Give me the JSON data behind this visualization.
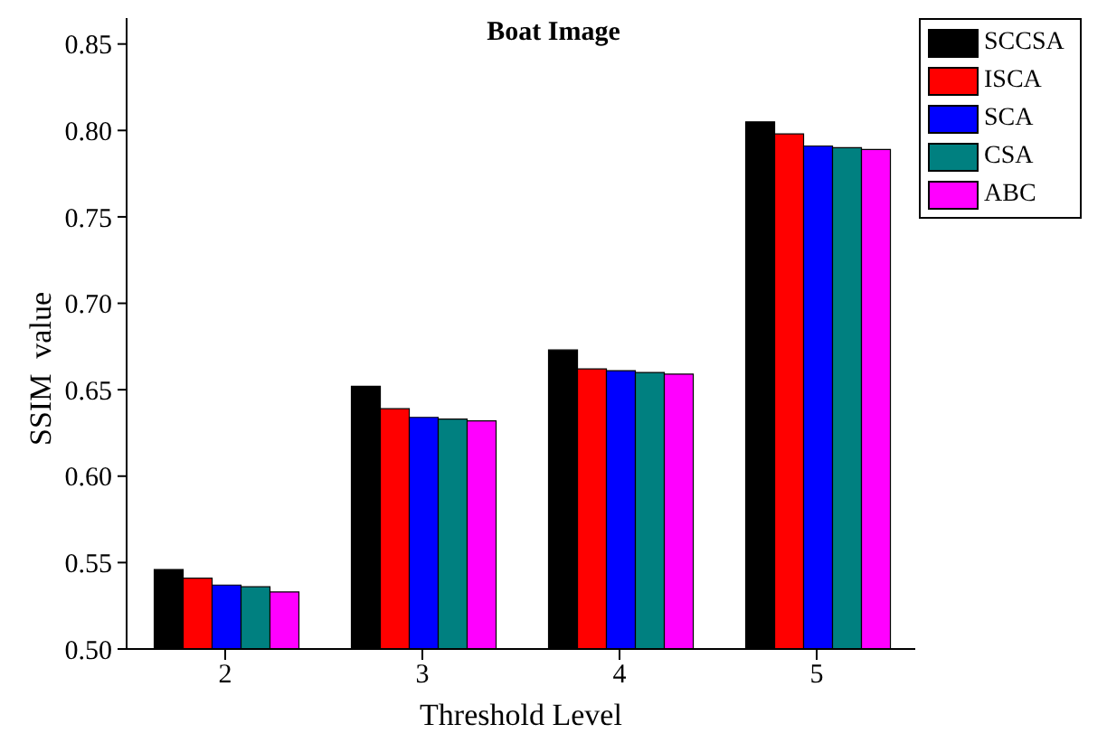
{
  "chart_data": {
    "type": "bar",
    "title": "Boat Image",
    "xlabel": "Threshold Level",
    "ylabel": "SSIM  value",
    "categories": [
      "2",
      "3",
      "4",
      "5"
    ],
    "series": [
      {
        "name": "SCCSA",
        "color": "#000000",
        "values": [
          0.546,
          0.652,
          0.673,
          0.805
        ]
      },
      {
        "name": "ISCA",
        "color": "#ff0000",
        "values": [
          0.541,
          0.639,
          0.662,
          0.798
        ]
      },
      {
        "name": "SCA",
        "color": "#0000ff",
        "values": [
          0.537,
          0.634,
          0.661,
          0.791
        ]
      },
      {
        "name": "CSA",
        "color": "#008080",
        "values": [
          0.536,
          0.633,
          0.66,
          0.79
        ]
      },
      {
        "name": "ABC",
        "color": "#ff00ff",
        "values": [
          0.533,
          0.632,
          0.659,
          0.789
        ]
      }
    ],
    "ylim": [
      0.5,
      0.865
    ],
    "yticks": [
      {
        "value": 0.5,
        "label": "0.50"
      },
      {
        "value": 0.55,
        "label": "0.55"
      },
      {
        "value": 0.6,
        "label": "0.60"
      },
      {
        "value": 0.65,
        "label": "0.65"
      },
      {
        "value": 0.7,
        "label": "0.70"
      },
      {
        "value": 0.75,
        "label": "0.75"
      },
      {
        "value": 0.8,
        "label": "0.80"
      },
      {
        "value": 0.85,
        "label": "0.85"
      }
    ],
    "grid": false,
    "legend": "top right"
  }
}
